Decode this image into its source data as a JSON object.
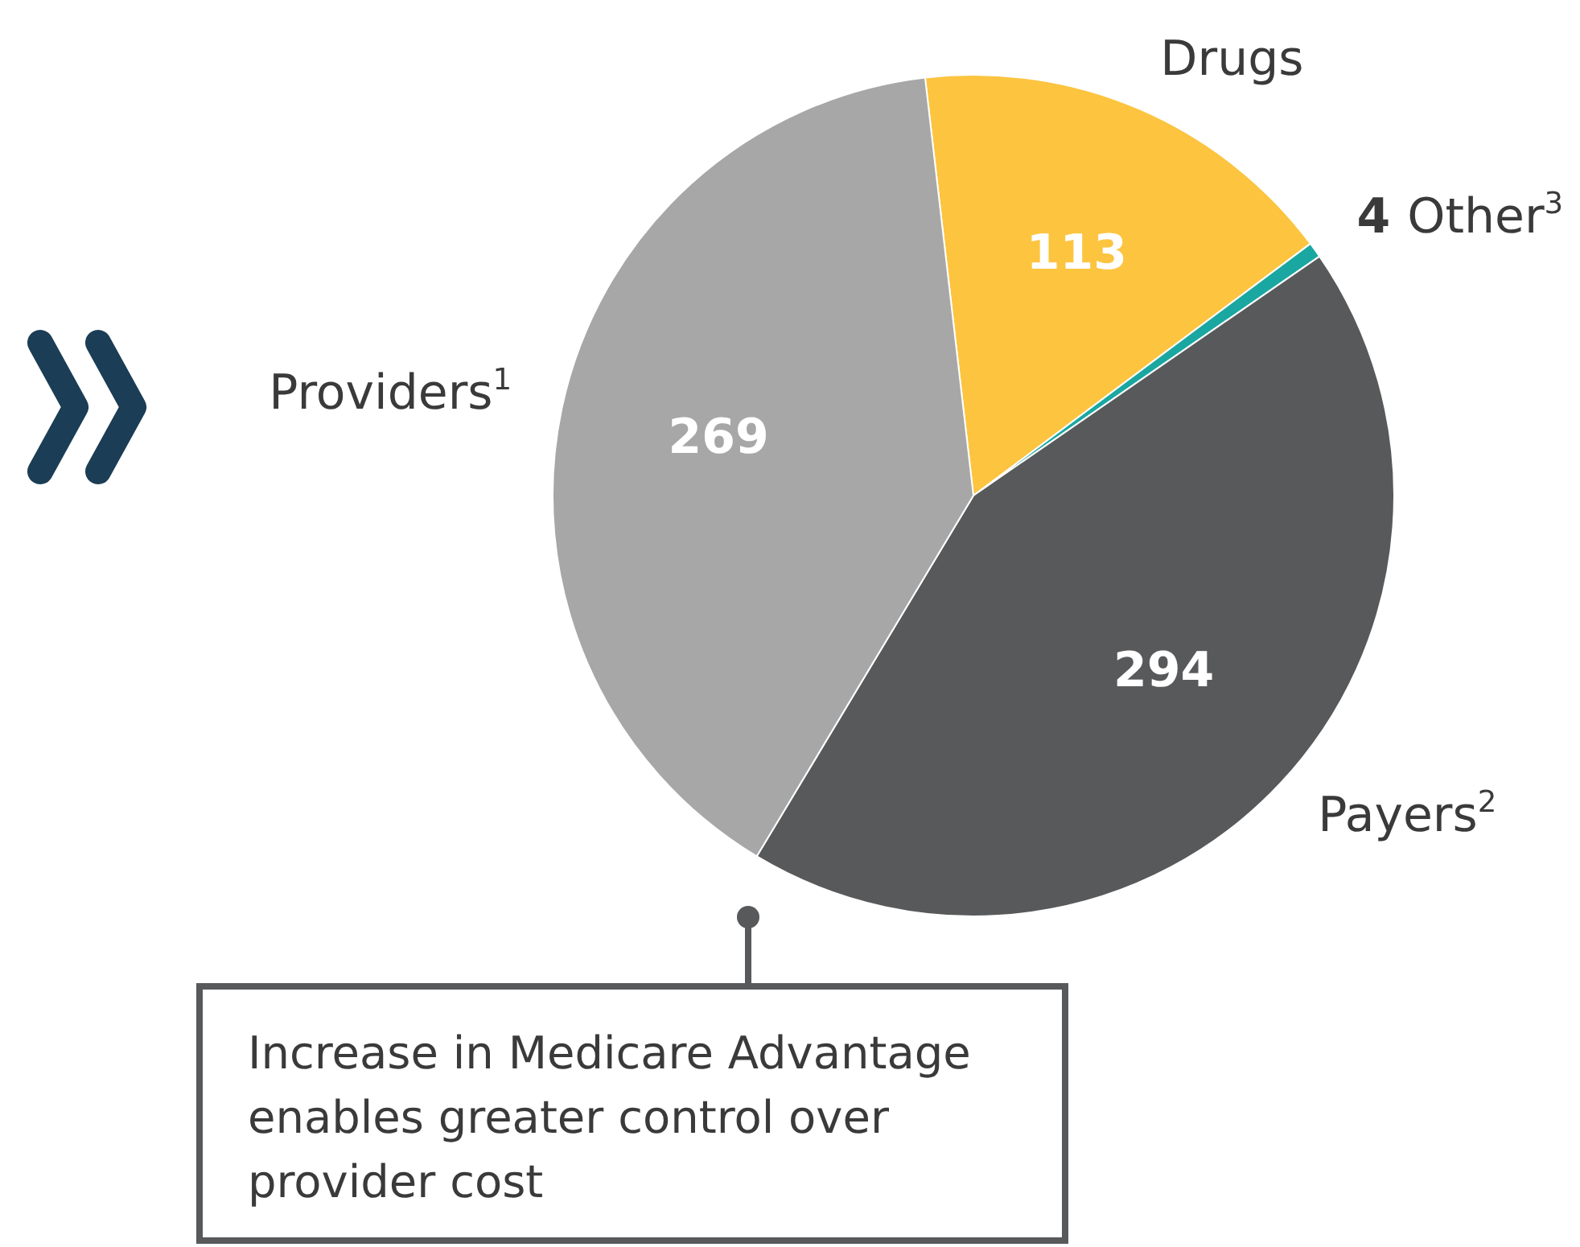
{
  "chart_data": {
    "type": "pie",
    "categories": [
      "Drugs",
      "Other$^{3}$",
      "Payers$^{2}$",
      "Providers$^{1}$"
    ],
    "values": [
      113,
      4,
      294,
      269
    ],
    "colors": [
      "#fcc43f",
      "#1aa7a1",
      "#58595b",
      "#a6a7a6"
    ],
    "data_labels": true,
    "legend": false,
    "annotations": [
      "Increase in Medicare Advantage enables greater control over provider cost"
    ]
  }
}
